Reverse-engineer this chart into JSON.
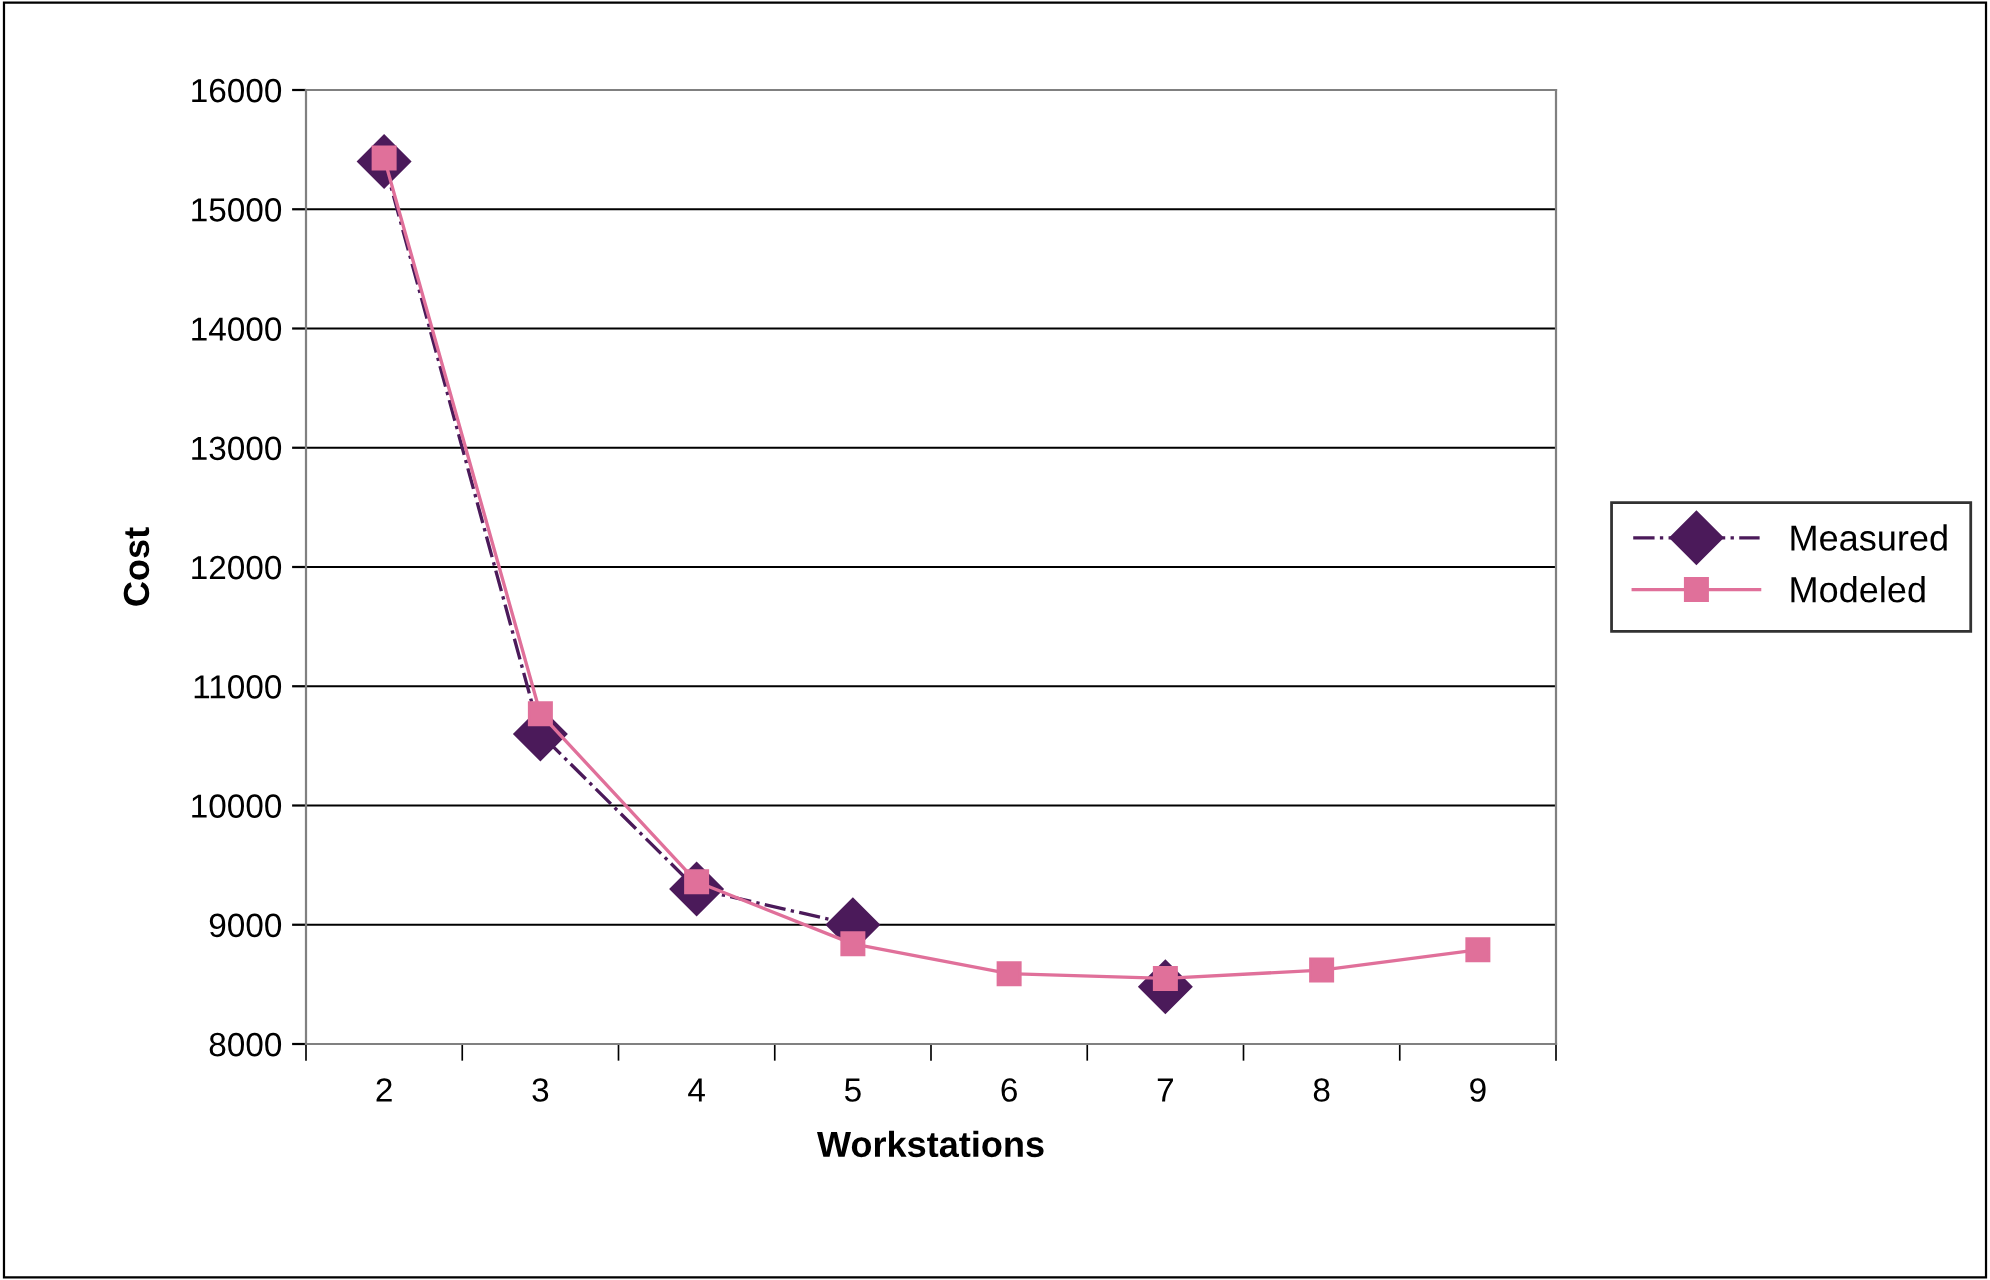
{
  "chart_data": {
    "type": "line",
    "xlabel": "Workstations",
    "ylabel": "Cost",
    "categories": [
      "2",
      "3",
      "4",
      "5",
      "6",
      "7",
      "8",
      "9"
    ],
    "series": [
      {
        "name": "Measured",
        "color": "#4b1a5a",
        "values": [
          15400,
          10600,
          9300,
          9000,
          null,
          8480,
          null,
          null
        ],
        "marker": "diamond",
        "line_style": "dashdot"
      },
      {
        "name": "Modeled",
        "color": "#e0709a",
        "values": [
          15430,
          10770,
          9360,
          8840,
          8590,
          8550,
          8620,
          8790
        ],
        "marker": "square",
        "line_style": "solid"
      }
    ],
    "ylim": [
      8000,
      16000
    ],
    "yticks": [
      8000,
      9000,
      10000,
      11000,
      12000,
      13000,
      14000,
      15000,
      16000
    ],
    "grid": "y",
    "legend": "right"
  }
}
